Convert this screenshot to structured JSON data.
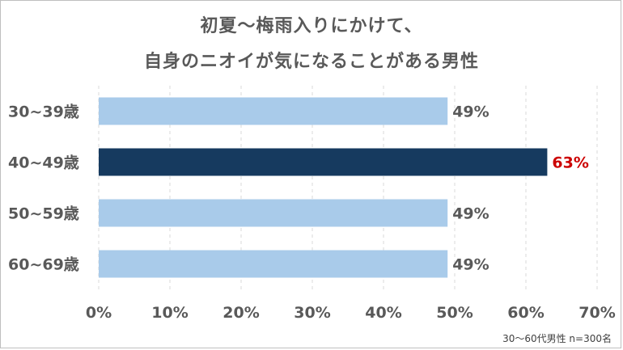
{
  "chart_data": {
    "type": "bar",
    "orientation": "horizontal",
    "title": [
      "初夏〜梅雨入りにかけて、",
      "自身のニオイが気になることがある男性"
    ],
    "categories": [
      "30~39歳",
      "40~49歳",
      "50~59歳",
      "60~69歳"
    ],
    "values": [
      49,
      63,
      49,
      49
    ],
    "data_labels": [
      "49%",
      "63%",
      "49%",
      "49%"
    ],
    "highlight_index": 1,
    "xlim": [
      0,
      70
    ],
    "x_ticks": [
      "0%",
      "10%",
      "20%",
      "30%",
      "40%",
      "50%",
      "60%",
      "70%"
    ],
    "grid": "vertical dashed",
    "colors": {
      "bar": "#a9cbea",
      "highlight_bar": "#163a5f",
      "label": "#595959",
      "highlight_label": "#cc0000",
      "grid": "#d9d9d9"
    },
    "footnote": "30〜60代男性 n=300名"
  }
}
